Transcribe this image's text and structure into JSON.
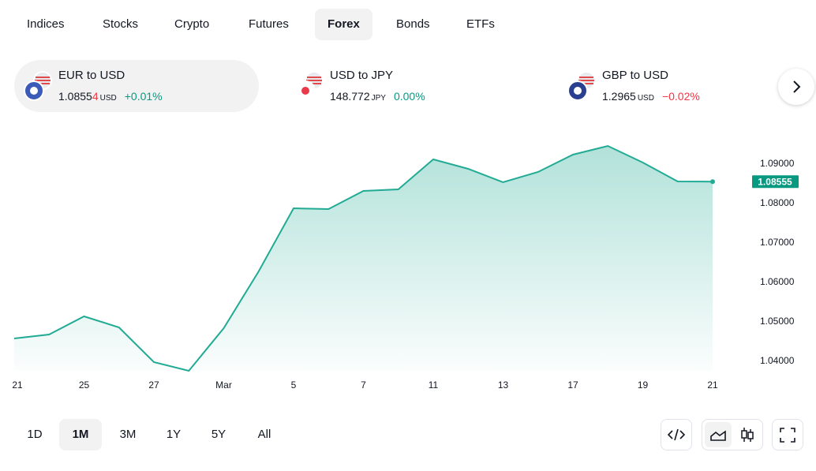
{
  "tabs": [
    "Indices",
    "Stocks",
    "Crypto",
    "Futures",
    "Forex",
    "Bonds",
    "ETFs"
  ],
  "active_tab": 4,
  "tickers": [
    {
      "name": "EUR to USD",
      "price": "1.0855",
      "price_digit": "4",
      "currency": "USD",
      "change": "+0.01%",
      "direction": "up"
    },
    {
      "name": "USD to JPY",
      "price": "148.772",
      "price_digit": "",
      "currency": "JPY",
      "change": "0.00%",
      "direction": "flat"
    },
    {
      "name": "GBP to USD",
      "price": "1.2965",
      "price_digit": "",
      "currency": "USD",
      "change": "−0.02%",
      "direction": "down"
    }
  ],
  "ranges": [
    "1D",
    "1M",
    "3M",
    "1Y",
    "5Y",
    "All"
  ],
  "active_range": 1,
  "chart_data": {
    "type": "area",
    "categories": [
      "21",
      null,
      "25",
      null,
      "27",
      null,
      "Mar",
      null,
      "5",
      null,
      "7",
      null,
      "11",
      null,
      "13",
      null,
      "17",
      null,
      "19",
      null,
      "21"
    ],
    "series": [
      {
        "name": "EUR to USD",
        "color": "#22ab94",
        "values": [
          1.0458,
          1.0468,
          1.0514,
          1.0486,
          1.0398,
          1.0376,
          1.0484,
          1.0628,
          1.0788,
          1.0786,
          1.0832,
          1.0836,
          1.0912,
          1.0888,
          1.0854,
          1.088,
          1.0924,
          1.0946,
          1.0904,
          1.0856,
          1.08555
        ]
      }
    ],
    "ylim": [
      1.0376,
      1.0976
    ],
    "yticks": [
      {
        "value": 1.04,
        "label": "1.04000"
      },
      {
        "value": 1.05,
        "label": "1.05000"
      },
      {
        "value": 1.06,
        "label": "1.06000"
      },
      {
        "value": 1.07,
        "label": "1.07000"
      },
      {
        "value": 1.08,
        "label": "1.08000"
      },
      {
        "value": 1.09,
        "label": "1.09000"
      }
    ]
  }
}
